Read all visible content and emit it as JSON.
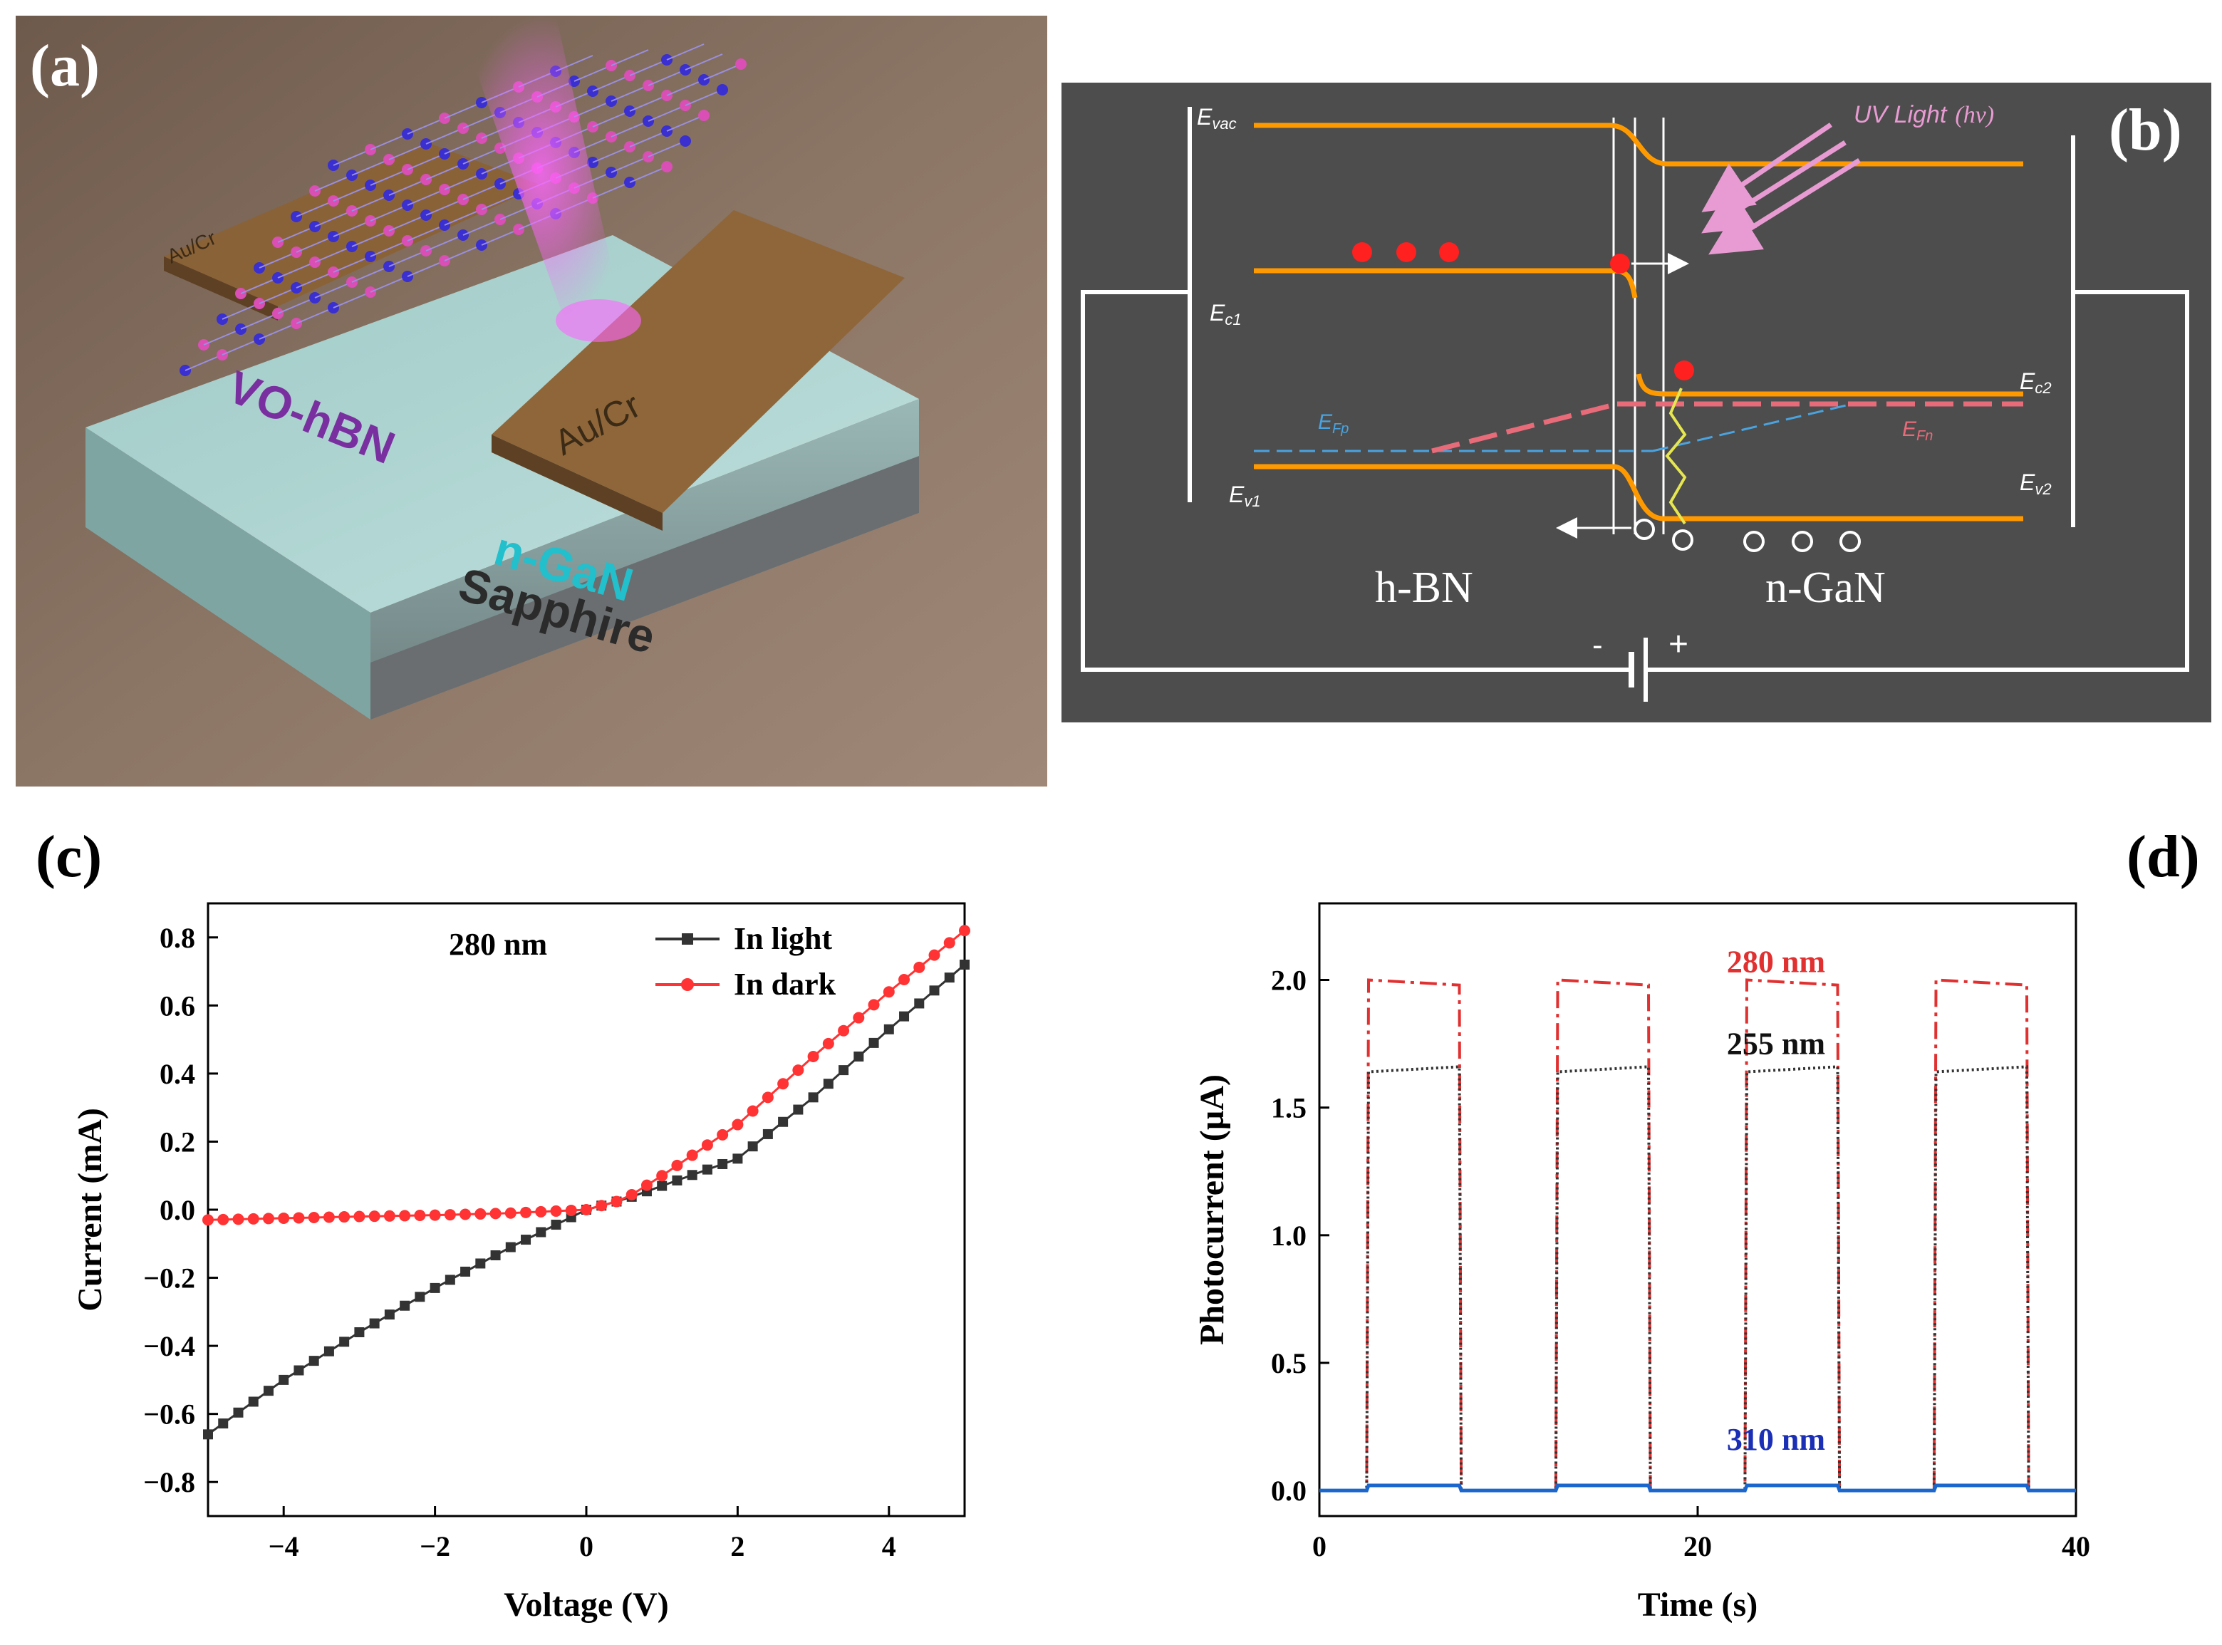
{
  "figure": {
    "panel_a": {
      "label": "(a)",
      "texts": {
        "electrode_left": "Au/Cr",
        "material": "VO-hBN",
        "electrode_right": "Au/Cr",
        "layer_top": "n-GaN",
        "layer_bottom": "Sapphire"
      }
    },
    "panel_b": {
      "label": "(b)",
      "texts": {
        "evac": "E",
        "evac_sub": "vac",
        "ec1": "E",
        "ec1_sub": "c1",
        "efp": "E",
        "efp_sub": "Fp",
        "ev1": "E",
        "ev1_sub": "v1",
        "ec2": "E",
        "ec2_sub": "c2",
        "efn": "E",
        "efn_sub": "Fn",
        "ev2": "E",
        "ev2_sub": "v2",
        "uv": "UV Light",
        "uv_hv": "(hν)",
        "left_material": "h-BN",
        "right_material": "n-GaN",
        "minus": "-",
        "plus": "+"
      }
    },
    "panel_c": {
      "label": "(c)"
    },
    "panel_d": {
      "label": "(d)"
    },
    "colors": {
      "orange": "#ff9900",
      "pink": "#e86b7a",
      "blue": "#4aa3df",
      "red": "#ff2020",
      "gray_bg": "#4d4d4d",
      "yellow": "#e6e650"
    }
  },
  "chart_data": [
    {
      "type": "line",
      "id": "c",
      "title": "",
      "xlabel": "Voltage (V)",
      "ylabel": "Current (mA)",
      "xlim": [
        -5,
        5
      ],
      "ylim": [
        -0.9,
        0.9
      ],
      "xticks": [
        -4,
        -2,
        0,
        2,
        4
      ],
      "xtick_labels": [
        "−4",
        "−2",
        "0",
        "2",
        "4"
      ],
      "yticks": [
        -0.8,
        -0.6,
        -0.4,
        -0.2,
        0.0,
        0.2,
        0.4,
        0.6,
        0.8
      ],
      "ytick_labels": [
        "−0.8",
        "−0.6",
        "−0.4",
        "−0.2",
        "0.0",
        "0.2",
        "0.4",
        "0.6",
        "0.8"
      ],
      "annotation": "280 nm",
      "legend_position": "top-right",
      "series": [
        {
          "name": "In light",
          "color": "#333333",
          "marker": "square",
          "x": [
            -5,
            -4,
            -3,
            -2,
            -1,
            0,
            0.5,
            1,
            2,
            3,
            4,
            5
          ],
          "y": [
            -0.66,
            -0.5,
            -0.36,
            -0.23,
            -0.11,
            0.0,
            0.03,
            0.07,
            0.15,
            0.33,
            0.53,
            0.72
          ]
        },
        {
          "name": "In dark",
          "color": "#ff3333",
          "marker": "circle",
          "x": [
            -5,
            -4,
            -3,
            -2,
            -1,
            0,
            0.5,
            1,
            2,
            3,
            4,
            5
          ],
          "y": [
            -0.03,
            -0.025,
            -0.02,
            -0.016,
            -0.01,
            0.0,
            0.03,
            0.1,
            0.25,
            0.45,
            0.64,
            0.82
          ]
        }
      ]
    },
    {
      "type": "line",
      "id": "d",
      "title": "",
      "xlabel": "Time (s)",
      "ylabel": "Photocurrent (µA)",
      "xlim": [
        0,
        40
      ],
      "ylim": [
        -0.1,
        2.3
      ],
      "xticks": [
        0,
        20,
        40
      ],
      "xtick_labels": [
        "0",
        "20",
        "40"
      ],
      "yticks": [
        0.0,
        0.5,
        1.0,
        1.5,
        2.0
      ],
      "ytick_labels": [
        "0.0",
        "0.5",
        "1.0",
        "1.5",
        "2.0"
      ],
      "on_periods": [
        [
          2.5,
          7.5
        ],
        [
          12.5,
          17.5
        ],
        [
          22.5,
          27.5
        ],
        [
          32.5,
          37.5
        ]
      ],
      "series": [
        {
          "name": "280 nm",
          "color": "#e03030",
          "dash": "24,8,5,8",
          "off": 0.0,
          "on_start": 2.0,
          "on_end": 1.98
        },
        {
          "name": "255 nm",
          "color": "#333333",
          "dash": "3,4",
          "off": 0.0,
          "on_start": 1.64,
          "on_end": 1.66
        },
        {
          "name": "310 nm",
          "color": "#1a66cc",
          "dash": "",
          "off": 0.0,
          "on_start": 0.02,
          "on_end": 0.02
        }
      ],
      "labels": [
        {
          "text": "280 nm",
          "color": "#e03030",
          "x": 27,
          "y": 1.98
        },
        {
          "text": "255 nm",
          "color": "#111111",
          "x": 27,
          "y": 1.66
        },
        {
          "text": "310 nm",
          "color": "#1a2fb5",
          "x": 27,
          "y": 0.11
        }
      ]
    }
  ]
}
